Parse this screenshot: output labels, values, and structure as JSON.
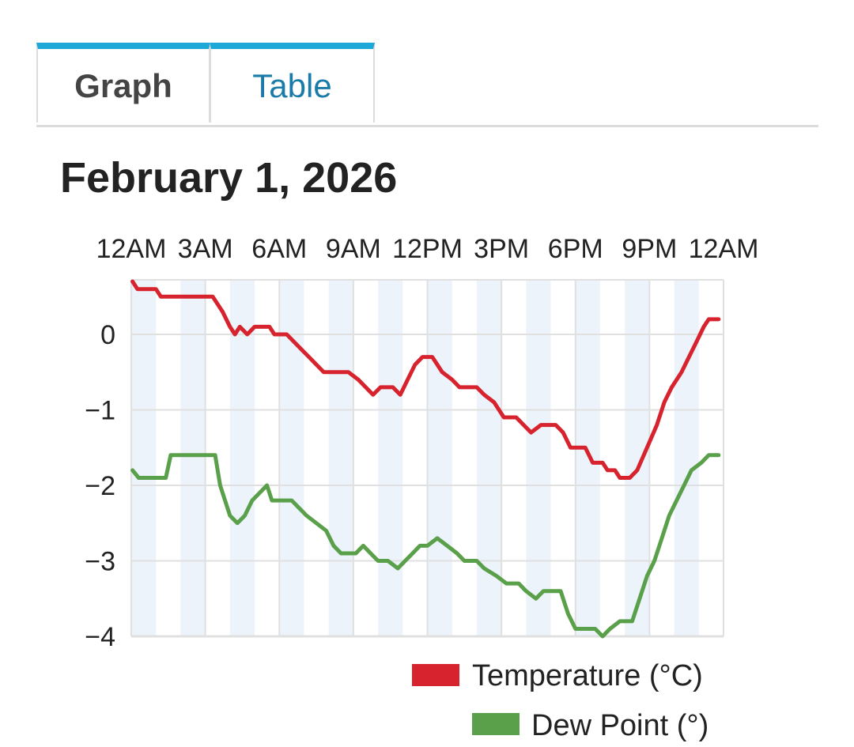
{
  "tabs": [
    {
      "label": "Graph",
      "active": true
    },
    {
      "label": "Table",
      "active": false
    }
  ],
  "date_title": "February 1, 2026",
  "colors": {
    "tab_accent": "#1ea8d8",
    "temperature": "#d7232e",
    "dew_point": "#5aa04a",
    "band": "#edf3fa",
    "grid": "#e0e0e0"
  },
  "chart_data": {
    "type": "line",
    "x_unit": "hours since 12AM",
    "xlim": [
      0,
      24
    ],
    "x_ticks": [
      {
        "x": 0,
        "label": "12AM"
      },
      {
        "x": 3,
        "label": "3AM"
      },
      {
        "x": 6,
        "label": "6AM"
      },
      {
        "x": 9,
        "label": "9AM"
      },
      {
        "x": 12,
        "label": "12PM"
      },
      {
        "x": 15,
        "label": "3PM"
      },
      {
        "x": 18,
        "label": "6PM"
      },
      {
        "x": 21,
        "label": "9PM"
      },
      {
        "x": 24,
        "label": "12AM"
      }
    ],
    "ylim": [
      -4,
      0.7
    ],
    "y_ticks": [
      {
        "y": 0,
        "label": "0"
      },
      {
        "y": -1,
        "label": "−1"
      },
      {
        "y": -2,
        "label": "−2"
      },
      {
        "y": -3,
        "label": "−3"
      },
      {
        "y": -4,
        "label": "−4"
      }
    ],
    "grid": true,
    "legend_position": "bottom-right",
    "series": [
      {
        "name": "Temperature (°C)",
        "color": "#d7232e",
        "points": [
          [
            0.05,
            0.7
          ],
          [
            0.25,
            0.6
          ],
          [
            1.0,
            0.6
          ],
          [
            1.2,
            0.5
          ],
          [
            3.3,
            0.5
          ],
          [
            3.7,
            0.3
          ],
          [
            4.0,
            0.1
          ],
          [
            4.2,
            0.0
          ],
          [
            4.4,
            0.1
          ],
          [
            4.7,
            0.0
          ],
          [
            5.0,
            0.1
          ],
          [
            5.6,
            0.1
          ],
          [
            5.8,
            0.0
          ],
          [
            6.3,
            0.0
          ],
          [
            6.6,
            -0.1
          ],
          [
            6.9,
            -0.2
          ],
          [
            7.2,
            -0.3
          ],
          [
            7.5,
            -0.4
          ],
          [
            7.8,
            -0.5
          ],
          [
            8.8,
            -0.5
          ],
          [
            9.2,
            -0.6
          ],
          [
            9.5,
            -0.7
          ],
          [
            9.8,
            -0.8
          ],
          [
            10.1,
            -0.7
          ],
          [
            10.6,
            -0.7
          ],
          [
            10.9,
            -0.8
          ],
          [
            11.2,
            -0.6
          ],
          [
            11.5,
            -0.4
          ],
          [
            11.8,
            -0.3
          ],
          [
            12.2,
            -0.3
          ],
          [
            12.6,
            -0.5
          ],
          [
            13.0,
            -0.6
          ],
          [
            13.3,
            -0.7
          ],
          [
            14.0,
            -0.7
          ],
          [
            14.3,
            -0.8
          ],
          [
            14.7,
            -0.9
          ],
          [
            15.1,
            -1.1
          ],
          [
            15.6,
            -1.1
          ],
          [
            15.9,
            -1.2
          ],
          [
            16.2,
            -1.3
          ],
          [
            16.6,
            -1.2
          ],
          [
            17.2,
            -1.2
          ],
          [
            17.5,
            -1.3
          ],
          [
            17.8,
            -1.5
          ],
          [
            18.4,
            -1.5
          ],
          [
            18.7,
            -1.7
          ],
          [
            19.1,
            -1.7
          ],
          [
            19.3,
            -1.8
          ],
          [
            19.6,
            -1.8
          ],
          [
            19.8,
            -1.9
          ],
          [
            20.2,
            -1.9
          ],
          [
            20.5,
            -1.8
          ],
          [
            20.9,
            -1.5
          ],
          [
            21.3,
            -1.2
          ],
          [
            21.6,
            -0.9
          ],
          [
            21.9,
            -0.7
          ],
          [
            22.3,
            -0.5
          ],
          [
            22.6,
            -0.3
          ],
          [
            22.9,
            -0.1
          ],
          [
            23.2,
            0.1
          ],
          [
            23.4,
            0.2
          ],
          [
            23.8,
            0.2
          ]
        ]
      },
      {
        "name": "Dew Point (°)",
        "color": "#5aa04a",
        "points": [
          [
            0.05,
            -1.8
          ],
          [
            0.3,
            -1.9
          ],
          [
            1.4,
            -1.9
          ],
          [
            1.6,
            -1.6
          ],
          [
            3.4,
            -1.6
          ],
          [
            3.6,
            -2.0
          ],
          [
            3.8,
            -2.2
          ],
          [
            4.0,
            -2.4
          ],
          [
            4.3,
            -2.5
          ],
          [
            4.6,
            -2.4
          ],
          [
            4.9,
            -2.2
          ],
          [
            5.2,
            -2.1
          ],
          [
            5.5,
            -2.0
          ],
          [
            5.7,
            -2.2
          ],
          [
            6.5,
            -2.2
          ],
          [
            6.8,
            -2.3
          ],
          [
            7.1,
            -2.4
          ],
          [
            7.5,
            -2.5
          ],
          [
            7.9,
            -2.6
          ],
          [
            8.2,
            -2.8
          ],
          [
            8.5,
            -2.9
          ],
          [
            9.1,
            -2.9
          ],
          [
            9.4,
            -2.8
          ],
          [
            9.7,
            -2.9
          ],
          [
            10.0,
            -3.0
          ],
          [
            10.4,
            -3.0
          ],
          [
            10.8,
            -3.1
          ],
          [
            11.1,
            -3.0
          ],
          [
            11.4,
            -2.9
          ],
          [
            11.7,
            -2.8
          ],
          [
            12.0,
            -2.8
          ],
          [
            12.4,
            -2.7
          ],
          [
            12.8,
            -2.8
          ],
          [
            13.2,
            -2.9
          ],
          [
            13.5,
            -3.0
          ],
          [
            14.0,
            -3.0
          ],
          [
            14.3,
            -3.1
          ],
          [
            14.8,
            -3.2
          ],
          [
            15.2,
            -3.3
          ],
          [
            15.7,
            -3.3
          ],
          [
            16.0,
            -3.4
          ],
          [
            16.4,
            -3.5
          ],
          [
            16.7,
            -3.4
          ],
          [
            17.4,
            -3.4
          ],
          [
            17.7,
            -3.7
          ],
          [
            18.0,
            -3.9
          ],
          [
            18.8,
            -3.9
          ],
          [
            19.1,
            -4.0
          ],
          [
            19.4,
            -3.9
          ],
          [
            19.8,
            -3.8
          ],
          [
            20.3,
            -3.8
          ],
          [
            20.6,
            -3.5
          ],
          [
            20.9,
            -3.2
          ],
          [
            21.2,
            -3.0
          ],
          [
            21.5,
            -2.7
          ],
          [
            21.8,
            -2.4
          ],
          [
            22.1,
            -2.2
          ],
          [
            22.4,
            -2.0
          ],
          [
            22.7,
            -1.8
          ],
          [
            23.1,
            -1.7
          ],
          [
            23.4,
            -1.6
          ],
          [
            23.8,
            -1.6
          ]
        ]
      }
    ]
  }
}
